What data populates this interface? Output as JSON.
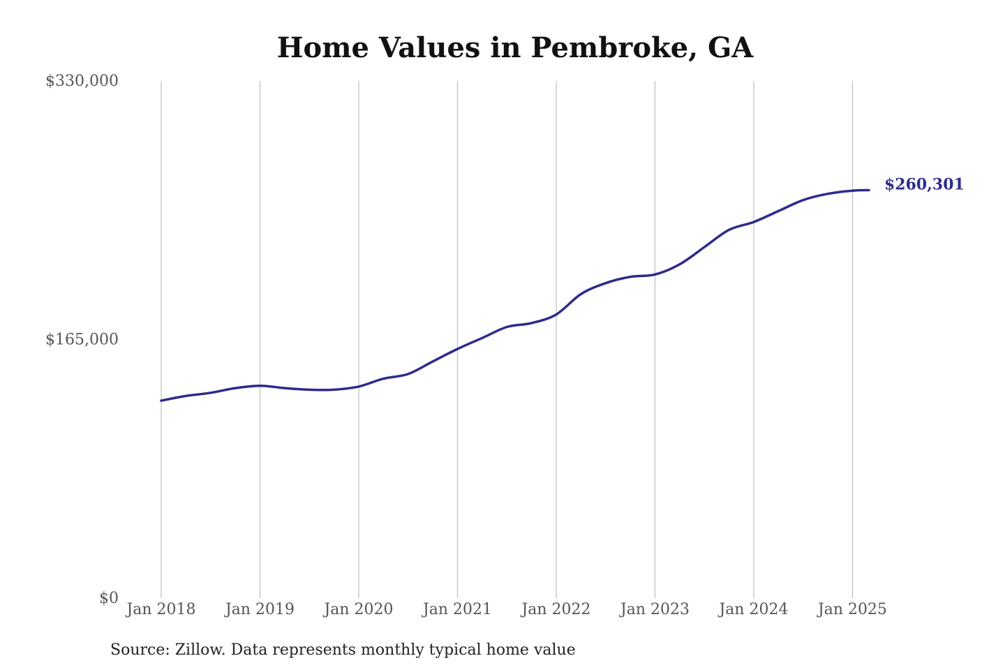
{
  "chart_data": {
    "type": "line",
    "title": "Home Values in Pembroke, GA",
    "xlabel": "",
    "ylabel": "",
    "ylim": [
      0,
      330000
    ],
    "xlim": [
      "2018-01",
      "2025-03"
    ],
    "y_ticks": [
      {
        "value": 0,
        "label": "$0"
      },
      {
        "value": 165000,
        "label": "$165,000"
      },
      {
        "value": 330000,
        "label": "$330,000"
      }
    ],
    "x_ticks": [
      {
        "value": "2018-01",
        "label": "Jan 2018"
      },
      {
        "value": "2019-01",
        "label": "Jan 2019"
      },
      {
        "value": "2020-01",
        "label": "Jan 2020"
      },
      {
        "value": "2021-01",
        "label": "Jan 2021"
      },
      {
        "value": "2022-01",
        "label": "Jan 2022"
      },
      {
        "value": "2023-01",
        "label": "Jan 2023"
      },
      {
        "value": "2024-01",
        "label": "Jan 2024"
      },
      {
        "value": "2025-01",
        "label": "Jan 2025"
      }
    ],
    "grid": {
      "vertical": true,
      "horizontal": false
    },
    "legend": "none",
    "series": [
      {
        "color": "#2e2a8c",
        "end_label": "$260,301",
        "points": [
          {
            "x": "2018-01",
            "y": 126000
          },
          {
            "x": "2018-04",
            "y": 129000
          },
          {
            "x": "2018-07",
            "y": 131000
          },
          {
            "x": "2018-10",
            "y": 134000
          },
          {
            "x": "2019-01",
            "y": 135500
          },
          {
            "x": "2019-04",
            "y": 134000
          },
          {
            "x": "2019-07",
            "y": 133000
          },
          {
            "x": "2019-10",
            "y": 133000
          },
          {
            "x": "2020-01",
            "y": 135000
          },
          {
            "x": "2020-04",
            "y": 140000
          },
          {
            "x": "2020-07",
            "y": 143000
          },
          {
            "x": "2020-10",
            "y": 151000
          },
          {
            "x": "2021-01",
            "y": 159000
          },
          {
            "x": "2021-04",
            "y": 166000
          },
          {
            "x": "2021-07",
            "y": 173000
          },
          {
            "x": "2021-10",
            "y": 175500
          },
          {
            "x": "2022-01",
            "y": 181000
          },
          {
            "x": "2022-04",
            "y": 194000
          },
          {
            "x": "2022-07",
            "y": 201000
          },
          {
            "x": "2022-10",
            "y": 205000
          },
          {
            "x": "2023-01",
            "y": 206500
          },
          {
            "x": "2023-04",
            "y": 213000
          },
          {
            "x": "2023-07",
            "y": 224000
          },
          {
            "x": "2023-10",
            "y": 235000
          },
          {
            "x": "2024-01",
            "y": 240000
          },
          {
            "x": "2024-04",
            "y": 247000
          },
          {
            "x": "2024-07",
            "y": 254000
          },
          {
            "x": "2024-10",
            "y": 258000
          },
          {
            "x": "2025-01",
            "y": 260000
          },
          {
            "x": "2025-03",
            "y": 260301
          }
        ]
      }
    ]
  },
  "footer": {
    "source": "Source: Zillow. Data represents monthly typical home value"
  }
}
